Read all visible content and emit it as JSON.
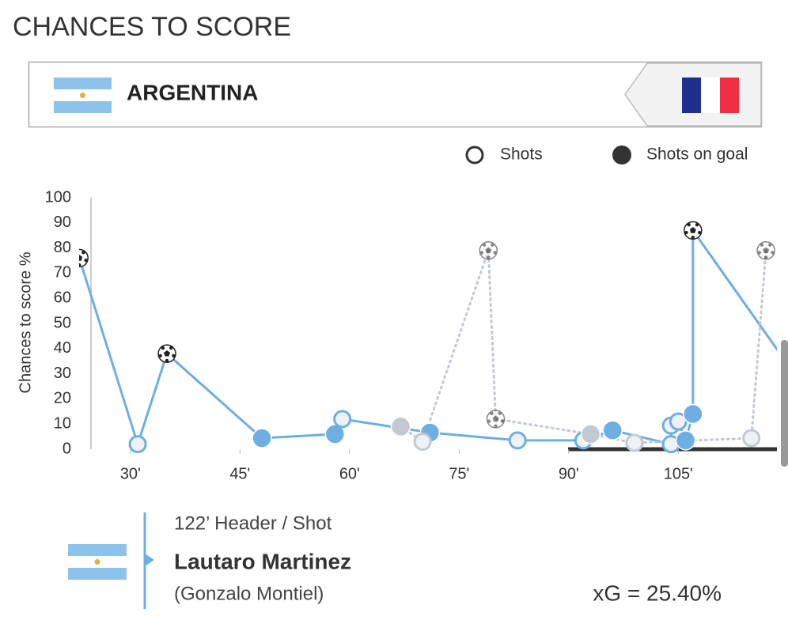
{
  "header": {
    "title": "CHANCES TO SCORE",
    "team": "ARGENTINA"
  },
  "chart_data": {
    "type": "line",
    "y_label": "Chances to score %",
    "marker_labels": [
      "Shots",
      "Shots on goal"
    ],
    "xlim": [
      24.6,
      118.5
    ],
    "xticks": [
      {
        "value": 30,
        "label": "30'"
      },
      {
        "value": 45,
        "label": "45'"
      },
      {
        "value": 60,
        "label": "60'"
      },
      {
        "value": 75,
        "label": "75'"
      },
      {
        "value": 90,
        "label": "90'"
      },
      {
        "value": 105,
        "label": "105'"
      }
    ],
    "ylim": [
      0,
      100
    ],
    "yticks": [
      0,
      10,
      20,
      30,
      40,
      50,
      60,
      70,
      80,
      90,
      100
    ],
    "series": [
      {
        "color": "#6eaee3",
        "dashed": false,
        "x": [
          23,
          31,
          35,
          48,
          58,
          59,
          71,
          83,
          92,
          96,
          104,
          104,
          105,
          106,
          107,
          107,
          122
        ],
        "values": [
          76,
          2,
          38,
          4.4,
          6,
          12,
          6.6,
          3.5,
          3.5,
          7.5,
          2,
          9.4,
          11,
          3.5,
          14,
          87,
          25.4
        ],
        "on_goal": [
          true,
          false,
          true,
          true,
          true,
          false,
          true,
          false,
          false,
          true,
          false,
          false,
          false,
          true,
          true,
          true,
          false
        ],
        "goal": [
          true,
          false,
          true,
          false,
          false,
          false,
          false,
          false,
          false,
          false,
          false,
          false,
          false,
          false,
          false,
          true,
          false
        ]
      },
      {
        "color": "#c3c9d2",
        "dashed": true,
        "x": [
          67,
          70,
          79,
          80,
          93,
          99,
          115,
          117
        ],
        "values": [
          9,
          3,
          79,
          12,
          6,
          2.5,
          4.4,
          79
        ],
        "on_goal": [
          true,
          false,
          true,
          true,
          true,
          false,
          false,
          true
        ],
        "goal": [
          false,
          false,
          true,
          true,
          false,
          false,
          false,
          true
        ]
      }
    ]
  },
  "detail": {
    "event": "122’ Header / Shot",
    "player": "Lautaro Martinez",
    "assist": "(Gonzalo Montiel)",
    "xg": "xG = 25.40%"
  }
}
